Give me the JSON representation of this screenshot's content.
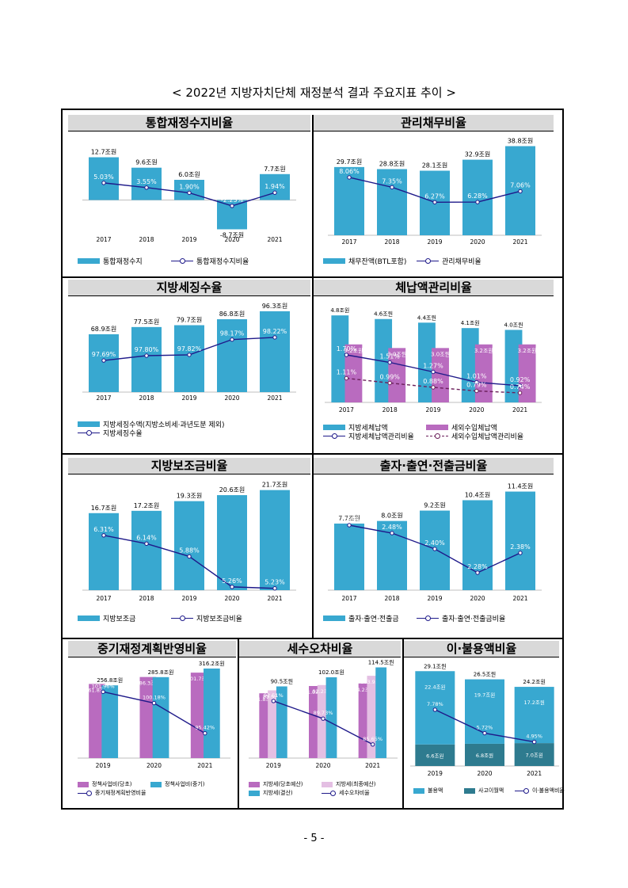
{
  "page": {
    "title": "< 2022년 지방자치단체 재정분석 결과 주요지표 추이 >",
    "page_number": "- 5 -"
  },
  "colors": {
    "bar_blue": "#38a8d0",
    "bar_purple": "#b96bbf",
    "bar_light_purple": "#e4bfe3",
    "bar_dark_teal": "#2e7b8f",
    "line_navy": "#1f1a8a",
    "line_dash": "#6b1f5a"
  },
  "chart_data": [
    {
      "id": "c1",
      "title": "통합재정수지비율",
      "type": "bar+line",
      "x": [
        "2017",
        "2018",
        "2019",
        "2020",
        "2021"
      ],
      "bars": [
        {
          "name": "통합재정수지",
          "values": [
            12.7,
            9.6,
            6.0,
            -8.7,
            7.7
          ],
          "labels": [
            "12.7조원",
            "9.6조원",
            "6.0조원",
            "-8.7조원",
            "7.7조원"
          ],
          "color": "#38a8d0"
        }
      ],
      "lines": [
        {
          "name": "통합재정수지비율",
          "values": [
            5.03,
            3.55,
            1.9,
            -2.23,
            1.94
          ],
          "labels": [
            "5.03%",
            "3.55%",
            "1.90%",
            "-2.23%",
            "1.94%"
          ]
        }
      ]
    },
    {
      "id": "c2",
      "title": "관리채무비율",
      "type": "bar+line",
      "x": [
        "2017",
        "2018",
        "2019",
        "2020",
        "2021"
      ],
      "bars": [
        {
          "name": "채무잔액(BTL포함)",
          "values": [
            29.7,
            28.8,
            28.1,
            32.9,
            38.8
          ],
          "labels": [
            "29.7조원",
            "28.8조원",
            "28.1조원",
            "32.9조원",
            "38.8조원"
          ],
          "color": "#38a8d0"
        }
      ],
      "lines": [
        {
          "name": "관리채무비율",
          "values": [
            8.06,
            7.35,
            6.27,
            6.28,
            7.06
          ],
          "labels": [
            "8.06%",
            "7.35%",
            "6.27%",
            "6.28%",
            "7.06%"
          ]
        }
      ]
    },
    {
      "id": "c3",
      "title": "지방세징수율",
      "type": "bar+line",
      "x": [
        "2017",
        "2018",
        "2019",
        "2020",
        "2021"
      ],
      "bars": [
        {
          "name": "지방세징수액(지방소비세·과년도분 제외)",
          "values": [
            68.9,
            77.5,
            79.7,
            86.8,
            96.3
          ],
          "labels": [
            "68.9조원",
            "77.5조원",
            "79.7조원",
            "86.8조원",
            "96.3조원"
          ],
          "color": "#38a8d0"
        }
      ],
      "lines": [
        {
          "name": "지방세징수율",
          "values": [
            97.69,
            97.8,
            97.82,
            98.17,
            98.22
          ],
          "labels": [
            "97.69%",
            "97.80%",
            "97.82%",
            "98.17%",
            "98.22%"
          ]
        }
      ]
    },
    {
      "id": "c4",
      "title": "체납액관리비율",
      "type": "bar+line",
      "x": [
        "2017",
        "2018",
        "2019",
        "2020",
        "2021"
      ],
      "bars": [
        {
          "name": "지방세체납액",
          "values": [
            4.8,
            4.6,
            4.4,
            4.1,
            4.0
          ],
          "labels": [
            "4.8조원",
            "4.6조원",
            "4.4조원",
            "4.1조원",
            "4.0조원"
          ],
          "color": "#38a8d0"
        },
        {
          "name": "세외수입체납액",
          "values": [
            3.2,
            3.0,
            3.0,
            3.2,
            3.2
          ],
          "labels": [
            "3.2조원",
            "3.0조원",
            "3.0조원",
            "3.2조원",
            "3.2조원"
          ],
          "color": "#b96bbf"
        }
      ],
      "lines": [
        {
          "name": "지방세체납액관리비율",
          "values": [
            1.7,
            1.51,
            1.27,
            1.01,
            0.92
          ],
          "labels": [
            "1.70%",
            "1.51%",
            "1.27%",
            "1.01%",
            "0.92%"
          ]
        },
        {
          "name": "세외수입체납액관리비율",
          "values": [
            1.11,
            0.99,
            0.88,
            0.79,
            0.74
          ],
          "labels": [
            "1.11%",
            "0.99%",
            "0.88%",
            "0.79%",
            "0.74%"
          ],
          "dashed": true
        }
      ]
    },
    {
      "id": "c5",
      "title": "지방보조금비율",
      "type": "bar+line",
      "x": [
        "2017",
        "2018",
        "2019",
        "2020",
        "2021"
      ],
      "bars": [
        {
          "name": "지방보조금",
          "values": [
            16.7,
            17.2,
            19.3,
            20.6,
            21.7
          ],
          "labels": [
            "16.7조원",
            "17.2조원",
            "19.3조원",
            "20.6조원",
            "21.7조원"
          ],
          "color": "#38a8d0"
        }
      ],
      "lines": [
        {
          "name": "지방보조금비율",
          "values": [
            6.31,
            6.14,
            5.88,
            5.26,
            5.23
          ],
          "labels": [
            "6.31%",
            "6.14%",
            "5.88%",
            "5.26%",
            "5.23%"
          ]
        }
      ]
    },
    {
      "id": "c6",
      "title": "출자·출연·전출금비율",
      "type": "bar+line",
      "x": [
        "2017",
        "2018",
        "2019",
        "2020",
        "2021"
      ],
      "bars": [
        {
          "name": "출자·출연·전출금",
          "values": [
            7.7,
            8.0,
            9.2,
            10.4,
            11.4
          ],
          "labels": [
            "7.7조원",
            "8.0조원",
            "9.2조원",
            "10.4조원",
            "11.4조원"
          ],
          "color": "#38a8d0"
        }
      ],
      "lines": [
        {
          "name": "출자·출연·전출금비율",
          "values": [
            2.52,
            2.48,
            2.4,
            2.28,
            2.38
          ],
          "labels": [
            "2.52%",
            "2.48%",
            "2.40%",
            "2.28%",
            "2.38%"
          ]
        }
      ]
    },
    {
      "id": "c7",
      "title": "중기재정계획반영비율",
      "type": "bar+line",
      "x": [
        "2019",
        "2020",
        "2021"
      ],
      "bars": [
        {
          "name": "정책사업비(당초)",
          "values": [
            261.8,
            286.3,
            301.7
          ],
          "labels": [
            "261.8조원",
            "286.3조원",
            "301.7조원"
          ],
          "color": "#b96bbf"
        },
        {
          "name": "정책사업비(중기)",
          "values": [
            256.8,
            285.8,
            316.2
          ],
          "labels": [
            "256.8조원",
            "285.8조원",
            "316.2조원"
          ],
          "color": "#38a8d0"
        }
      ],
      "lines": [
        {
          "name": "중기재정계획반영비율",
          "values": [
            101.96,
            100.18,
            95.42
          ],
          "labels": [
            "101.96%",
            "100.18%",
            "95.42%"
          ]
        }
      ]
    },
    {
      "id": "c8",
      "title": "세수오차비율",
      "type": "bar+line",
      "x": [
        "2019",
        "2020",
        "2021"
      ],
      "bars": [
        {
          "name": "지방세(당초예산)",
          "values": [
            81.8,
            91.0,
            94.2
          ],
          "labels": [
            "81.8조원",
            "91.0조원",
            "94.2조원"
          ],
          "color": "#b96bbf"
        },
        {
          "name": "지방세(최종예산)",
          "values": [
            85.5,
            92.2,
            103.9
          ],
          "labels": [
            "85.5조원",
            "92.2조원",
            "103.9조원"
          ],
          "color": "#e4bfe3"
        },
        {
          "name": "지방세(결산)",
          "values": [
            90.5,
            102.0,
            114.5
          ],
          "labels": [
            "90.5조원",
            "102.0조원",
            "114.5조원"
          ],
          "color": "#38a8d0"
        }
      ],
      "lines": [
        {
          "name": "세수오차비율",
          "values": [
            92.51,
            89.73,
            85.65
          ],
          "labels": [
            "92.51%",
            "89.73%",
            "85.65%"
          ]
        }
      ]
    },
    {
      "id": "c9",
      "title": "이·불용액비율",
      "type": "stacked-bar+line",
      "x": [
        "2019",
        "2020",
        "2021"
      ],
      "bars": [
        {
          "name": "불용액",
          "values": [
            22.4,
            19.7,
            17.2
          ],
          "labels": [
            "22.4조원",
            "19.7조원",
            "17.2조원"
          ],
          "color": "#38a8d0"
        },
        {
          "name": "사고이월액",
          "values": [
            6.6,
            6.8,
            7.0
          ],
          "labels": [
            "6.6조원",
            "6.8조원",
            "7.0조원"
          ],
          "color": "#2e7b8f"
        }
      ],
      "totals": {
        "values": [
          29.1,
          26.5,
          24.2
        ],
        "labels": [
          "29.1조원",
          "26.5조원",
          "24.2조원"
        ]
      },
      "lines": [
        {
          "name": "이·불용액비율",
          "values": [
            7.78,
            5.72,
            4.95
          ],
          "labels": [
            "7.78%",
            "5.72%",
            "4.95%"
          ]
        }
      ]
    }
  ]
}
